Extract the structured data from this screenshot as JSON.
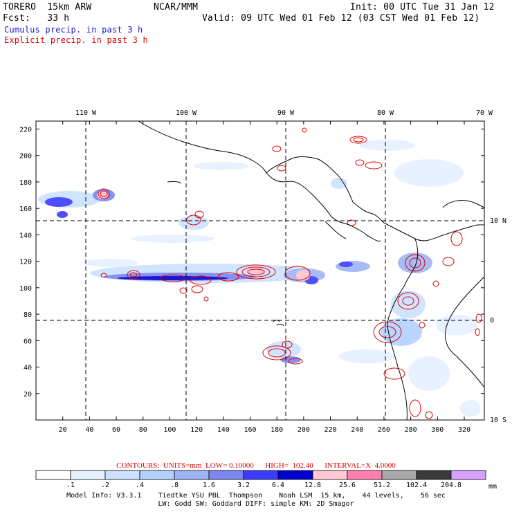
{
  "header": {
    "model": "TORERO  15km ARW",
    "org": "NCAR/MMM",
    "init": "Init: 00 UTC Tue 31 Jan 12",
    "fcst": "Fcst:   33 h",
    "valid": "Valid: 09 UTC Wed 01 Feb 12 (03 CST Wed 01 Feb 12)",
    "cumulus": "Cumulus precip. in past 3 h",
    "explicit": "Explicit precip. in past 3 h"
  },
  "colors": {
    "cumulus": "#1a1ac0",
    "explicit": "#e00000",
    "coast": "#000000",
    "contour": "#e00000"
  },
  "map": {
    "lon_labels": [
      "110 W",
      "100 W",
      "90 W",
      "80 W",
      "70 W"
    ],
    "lat_labels": [
      "10 N",
      "0",
      "10 S"
    ],
    "x_ticks": [
      "20",
      "40",
      "60",
      "80",
      "100",
      "120",
      "140",
      "160",
      "180",
      "200",
      "220",
      "240",
      "260",
      "280",
      "300",
      "320"
    ],
    "y_ticks": [
      "20",
      "40",
      "60",
      "80",
      "100",
      "120",
      "140",
      "160",
      "180",
      "200",
      "220"
    ],
    "grid_x_index": [
      40,
      113,
      185,
      260
    ],
    "grid_y_index": [
      76,
      150
    ],
    "x_range": [
      0,
      335
    ],
    "y_range": [
      0,
      226
    ]
  },
  "contours_line": "CONTOURS:  UNITS=mm  LOW= 0.10000      HIGH=  102.40      INTERVAL=X  4.0000",
  "legend": {
    "unit": "mm",
    "labels": [
      ".1",
      ".2",
      ".4",
      ".8",
      "1.6",
      "3.2",
      "6.4",
      "12.8",
      "25.6",
      "51.2",
      "102.4",
      "204.8"
    ],
    "colors": [
      "#ffffff",
      "#e6f0ff",
      "#cce0ff",
      "#b3d1ff",
      "#9fb4f5",
      "#7b86ee",
      "#3c3cff",
      "#0000d0",
      "#ffc8d4",
      "#ff7fb0",
      "#a8a8a8",
      "#3a3a3a",
      "#d6a0ff"
    ]
  },
  "info": {
    "line1": "Model Info: V3.3.1    Tiedtke YSU PBL  Thompson    Noah LSM  15 km,    44 levels,    56 sec",
    "line2": "LW: Godd SW: Goddard DIFF: simple KM: 2D Smagor"
  }
}
